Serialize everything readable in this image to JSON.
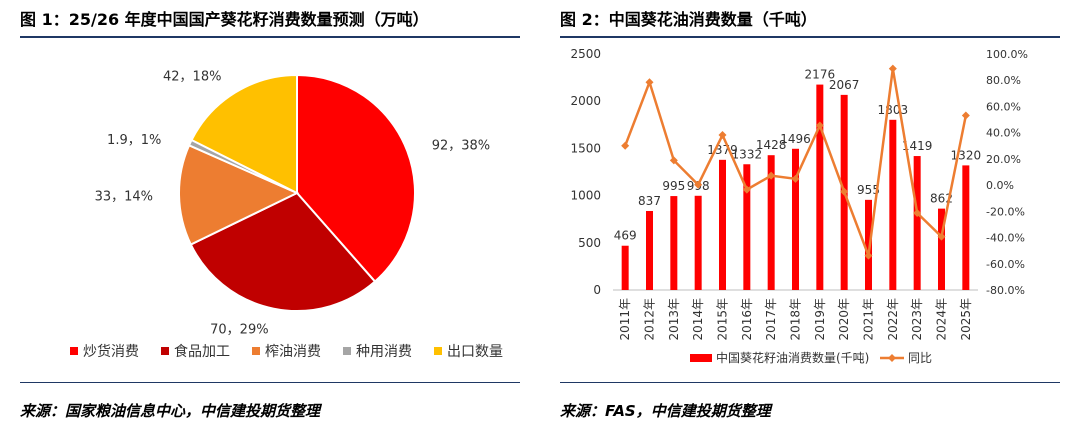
{
  "figure1": {
    "title": "图 1：25/26 年度中国国产葵花籽消费数量预测（万吨）",
    "source": "来源：国家粮油信息中心，中信建投期货整理",
    "chart_data": {
      "type": "pie",
      "slices": [
        {
          "name": "炒货消费",
          "value": 92,
          "label": "92, 38%",
          "color": "#ff0000"
        },
        {
          "name": "食品加工",
          "value": 70,
          "label": "70, 29%",
          "color": "#c00000"
        },
        {
          "name": "榨油消费",
          "value": 33,
          "label": "33, 14%",
          "color": "#ed7d31"
        },
        {
          "name": "种用消费",
          "value": 1.9,
          "label": "1.9, 1%",
          "color": "#a5a5a5"
        },
        {
          "name": "出口数量",
          "value": 42,
          "label": "42, 18%",
          "color": "#ffc000"
        }
      ],
      "legend": "bottom"
    }
  },
  "figure2": {
    "title": "图 2：中国葵花油消费数量（千吨）",
    "source": "来源：FAS，中信建投期货整理",
    "chart_data": {
      "type": "bar",
      "categories": [
        "2011年",
        "2012年",
        "2013年",
        "2014年",
        "2015年",
        "2016年",
        "2017年",
        "2018年",
        "2019年",
        "2020年",
        "2021年",
        "2022年",
        "2023年",
        "2024年",
        "2025年"
      ],
      "series": [
        {
          "name": "中国葵花籽油消费数量(千吨)",
          "type": "bar",
          "axis": "left",
          "color": "#ff0000",
          "values": [
            469,
            837,
            995,
            998,
            1379,
            1332,
            1428,
            1496,
            2176,
            2067,
            955,
            1803,
            1419,
            862,
            1320
          ]
        },
        {
          "name": "同比",
          "type": "line",
          "axis": "right",
          "color": "#ed7d31",
          "values": [
            30.0,
            78.5,
            18.9,
            0.3,
            38.2,
            -3.4,
            7.2,
            4.8,
            45.5,
            -5.0,
            -53.8,
            88.8,
            -21.3,
            -39.3,
            53.1
          ]
        }
      ],
      "left_axis": {
        "min": 0,
        "max": 2500,
        "step": 500,
        "ticks": [
          "0",
          "500",
          "1000",
          "1500",
          "2000",
          "2500"
        ]
      },
      "right_axis": {
        "min": -80,
        "max": 100,
        "step": 20,
        "ticks": [
          "-80.0%",
          "-60.0%",
          "-40.0%",
          "-20.0%",
          "0.0%",
          "20.0%",
          "40.0%",
          "60.0%",
          "80.0%",
          "100.0%"
        ]
      },
      "legend": "bottom"
    }
  }
}
